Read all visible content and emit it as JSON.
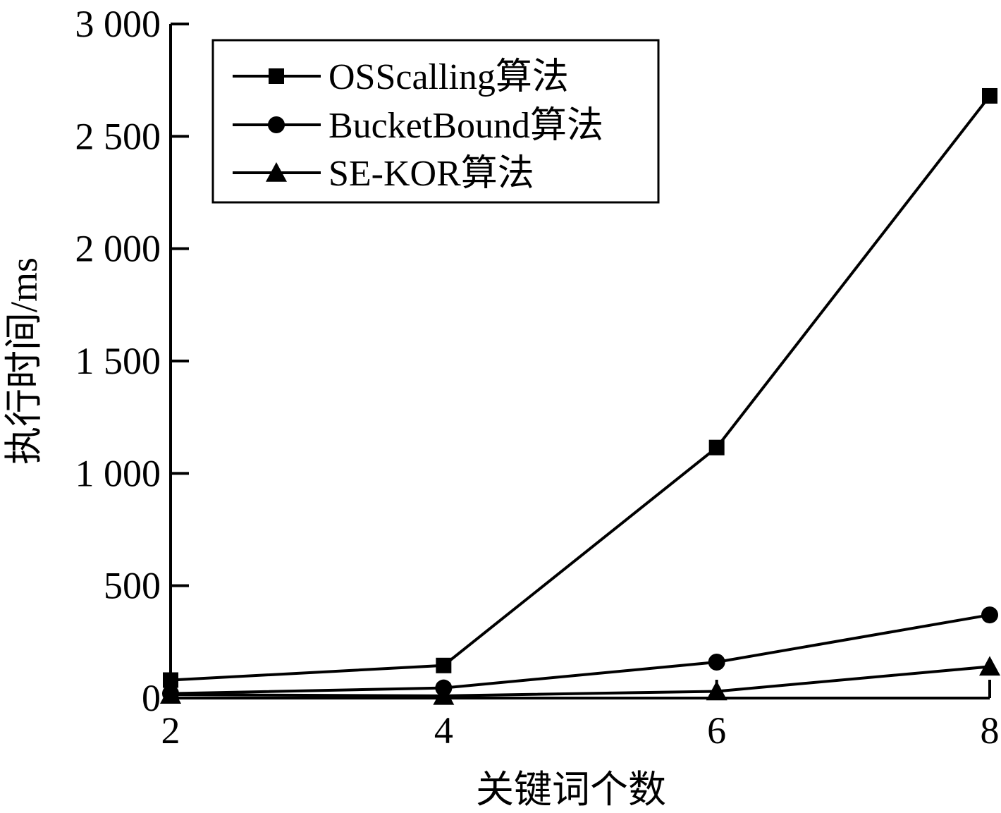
{
  "chart_data": {
    "type": "line",
    "title": "",
    "xlabel": "关键词个数",
    "ylabel": "执行时间/ms",
    "x": [
      2,
      4,
      6,
      8
    ],
    "xticks": [
      "2",
      "4",
      "6",
      "8"
    ],
    "ylim": [
      0,
      3000
    ],
    "yticks": [
      {
        "value": 0,
        "label": "0"
      },
      {
        "value": 500,
        "label": "500"
      },
      {
        "value": 1000,
        "label": "1 000"
      },
      {
        "value": 1500,
        "label": "1 500"
      },
      {
        "value": 2000,
        "label": "2 000"
      },
      {
        "value": 2500,
        "label": "2 500"
      },
      {
        "value": 3000,
        "label": "3 000"
      }
    ],
    "grid": false,
    "legend_position": "top-left",
    "series": [
      {
        "name": "OSScalling算法",
        "marker": "square",
        "values": [
          80,
          145,
          1115,
          2680
        ]
      },
      {
        "name": "BucketBound算法",
        "marker": "circle",
        "values": [
          20,
          45,
          160,
          370
        ]
      },
      {
        "name": "SE-KOR算法",
        "marker": "triangle",
        "values": [
          15,
          10,
          30,
          140
        ]
      }
    ]
  }
}
